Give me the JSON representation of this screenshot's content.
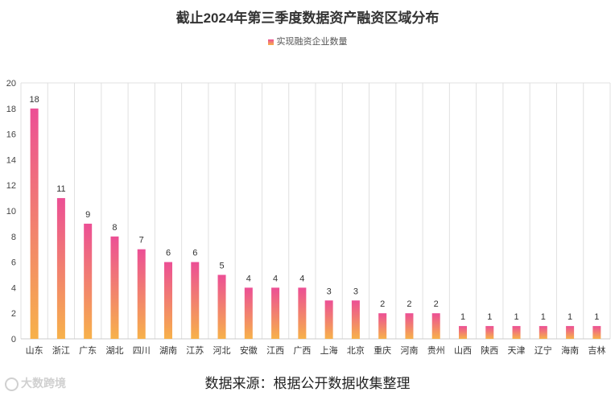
{
  "chart_data": {
    "type": "bar",
    "title": "截止2024年第三季度数据资产融资区域分布",
    "legend": "实现融资企业数量",
    "categories": [
      "山东",
      "浙江",
      "广东",
      "湖北",
      "四川",
      "湖南",
      "江苏",
      "河北",
      "安徽",
      "江西",
      "广西",
      "上海",
      "北京",
      "重庆",
      "河南",
      "贵州",
      "山西",
      "陕西",
      "天津",
      "辽宁",
      "海南",
      "吉林"
    ],
    "series": [
      {
        "name": "实现融资企业数量",
        "values": [
          18,
          11,
          9,
          8,
          7,
          6,
          6,
          5,
          4,
          4,
          4,
          3,
          3,
          2,
          2,
          2,
          1,
          1,
          1,
          1,
          1,
          1
        ]
      }
    ],
    "yticks": [
      "0",
      "2",
      "4",
      "6",
      "8",
      "10",
      "12",
      "14",
      "16",
      "18",
      "20"
    ],
    "ylim": [
      0,
      20
    ],
    "xlabel": "",
    "ylabel": "",
    "grid": true,
    "colors": {
      "bar_top": "#ec4f95",
      "bar_bottom": "#f7b14a",
      "grid": "#e0e0e0",
      "axis": "#cccccc"
    }
  },
  "source_note": "数据来源：根据公开数据收集整理",
  "watermark": "大数跨境"
}
